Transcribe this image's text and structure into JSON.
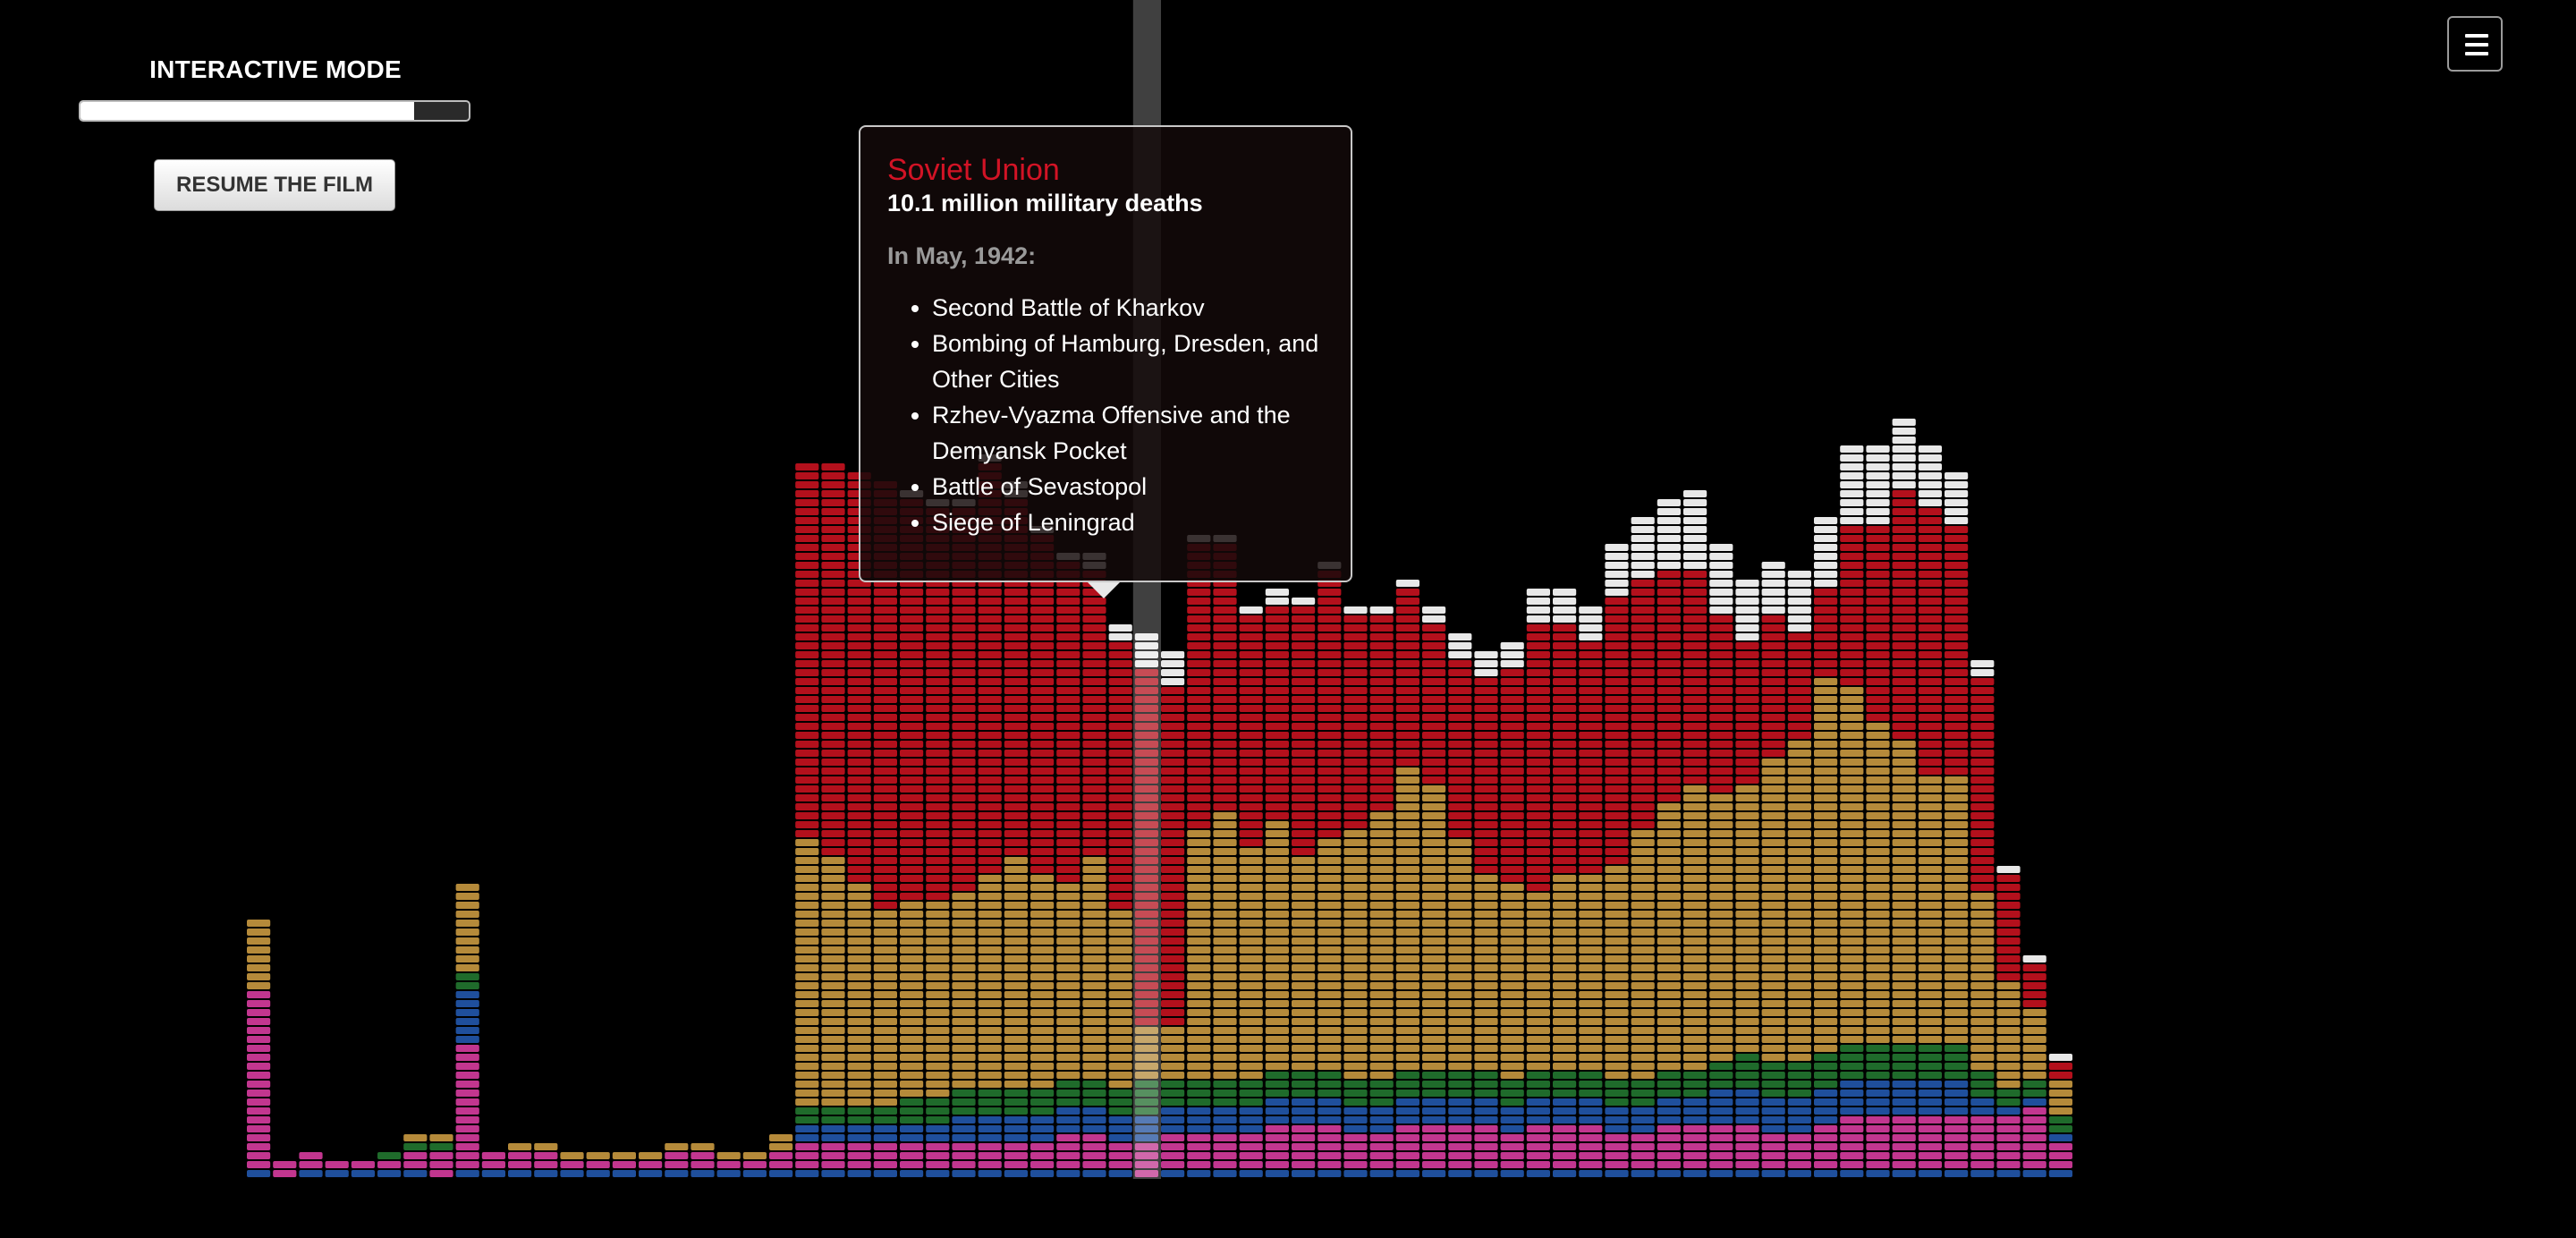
{
  "controls": {
    "mode_title": "INTERACTIVE MODE",
    "progress_fraction": 0.86,
    "resume_label": "RESUME THE FILM",
    "menu_icon": "hamburger-menu-icon"
  },
  "tooltip": {
    "country": "Soviet Union",
    "deaths": "10.1 million millitary deaths",
    "period": "In May, 1942:",
    "events": [
      "Second Battle of Kharkov",
      "Bombing of Hamburg, Dresden, and Other Cities",
      "Rzhev-Vyazma Offensive and the Demyansk Pocket",
      "Battle of Sevastopol",
      "Siege of Leningrad"
    ]
  },
  "colors": {
    "background": "#000000",
    "soviet_union": "#b3101c",
    "germany": "#b58a3a",
    "green": "#1f6b2b",
    "blue": "#1f4f9c",
    "magenta": "#c2368f",
    "white": "#e8e8e8",
    "tooltip_title": "#d21325"
  },
  "chart_data": {
    "type": "area",
    "stacking": "stacked",
    "grid": false,
    "legend": "none",
    "highlighted_month": 34,
    "series": [
      {
        "color": "#1f4f9c",
        "values": [
          1,
          0,
          1,
          1,
          1,
          1,
          1,
          0,
          1,
          1,
          1,
          1,
          1,
          1,
          1,
          1,
          1,
          1,
          1,
          1,
          1,
          1,
          1,
          1,
          1,
          1,
          1,
          1,
          1,
          1,
          1,
          1,
          1,
          1,
          0,
          1,
          1,
          1,
          1,
          1,
          1,
          1,
          1,
          1,
          1,
          1,
          1,
          1,
          1,
          1,
          1,
          1,
          1,
          1,
          1,
          1,
          1,
          1,
          1,
          1,
          1,
          1,
          1,
          1,
          1,
          1,
          1,
          1,
          1,
          1,
          0,
          0,
          0,
          0,
          0,
          0,
          0,
          0,
          0,
          0
        ]
      },
      {
        "color": "#c2368f",
        "values": [
          20,
          2,
          2,
          1,
          1,
          1,
          2,
          3,
          14,
          2,
          2,
          2,
          1,
          1,
          1,
          1,
          2,
          2,
          1,
          1,
          2,
          3,
          3,
          3,
          3,
          3,
          3,
          3,
          3,
          3,
          3,
          4,
          4,
          3,
          4,
          4,
          4,
          4,
          4,
          5,
          5,
          5,
          4,
          4,
          5,
          5,
          5,
          5,
          4,
          5,
          5,
          5,
          4,
          4,
          5,
          5,
          5,
          5,
          4,
          4,
          5,
          6,
          6,
          6,
          6,
          6,
          6,
          6,
          7,
          3,
          0,
          0,
          0,
          0,
          0,
          0,
          0,
          0,
          0,
          0
        ]
      },
      {
        "color": "#1f4f9c",
        "values": [
          0,
          0,
          0,
          0,
          0,
          0,
          0,
          0,
          6,
          0,
          0,
          0,
          0,
          0,
          0,
          0,
          0,
          0,
          0,
          0,
          0,
          2,
          2,
          2,
          2,
          2,
          2,
          3,
          3,
          3,
          3,
          3,
          3,
          3,
          3,
          3,
          3,
          3,
          3,
          3,
          3,
          3,
          3,
          3,
          3,
          3,
          3,
          3,
          3,
          3,
          3,
          3,
          3,
          3,
          3,
          3,
          4,
          4,
          4,
          4,
          4,
          4,
          4,
          4,
          4,
          4,
          2,
          1,
          1,
          1,
          0,
          0,
          0,
          0,
          0,
          0,
          0,
          0,
          0,
          0
        ]
      },
      {
        "color": "#1f6b2b",
        "values": [
          0,
          0,
          0,
          0,
          0,
          1,
          1,
          1,
          2,
          0,
          0,
          0,
          0,
          0,
          0,
          0,
          0,
          0,
          0,
          0,
          0,
          2,
          2,
          2,
          2,
          3,
          3,
          3,
          3,
          3,
          3,
          3,
          3,
          3,
          4,
          3,
          3,
          3,
          3,
          3,
          3,
          3,
          3,
          3,
          3,
          3,
          3,
          3,
          3,
          3,
          3,
          3,
          3,
          3,
          3,
          3,
          3,
          4,
          4,
          4,
          4,
          4,
          4,
          4,
          4,
          4,
          3,
          2,
          2,
          2,
          0,
          0,
          0,
          0,
          0,
          0,
          0,
          0,
          0,
          0
        ]
      },
      {
        "color": "#b58a3a",
        "values": [
          8,
          0,
          0,
          0,
          0,
          0,
          1,
          1,
          10,
          0,
          1,
          1,
          1,
          1,
          1,
          1,
          1,
          1,
          1,
          1,
          2,
          30,
          28,
          25,
          22,
          22,
          22,
          22,
          24,
          26,
          24,
          22,
          25,
          20,
          6,
          6,
          28,
          30,
          26,
          28,
          24,
          26,
          28,
          30,
          34,
          32,
          26,
          22,
          22,
          20,
          22,
          22,
          24,
          28,
          30,
          32,
          30,
          30,
          34,
          36,
          42,
          40,
          36,
          34,
          30,
          30,
          20,
          12,
          8,
          4,
          0,
          0,
          0,
          0,
          0,
          0,
          0,
          0,
          0,
          0
        ]
      },
      {
        "color": "#b3101c",
        "values": [
          0,
          0,
          0,
          0,
          0,
          0,
          0,
          0,
          0,
          0,
          0,
          0,
          0,
          0,
          0,
          0,
          0,
          0,
          0,
          0,
          0,
          42,
          44,
          46,
          48,
          45,
          44,
          43,
          46,
          40,
          38,
          36,
          32,
          30,
          40,
          38,
          32,
          30,
          26,
          24,
          28,
          30,
          24,
          22,
          20,
          18,
          20,
          22,
          24,
          30,
          28,
          26,
          30,
          28,
          26,
          24,
          20,
          16,
          16,
          12,
          10,
          18,
          22,
          28,
          30,
          28,
          24,
          12,
          5,
          2,
          0,
          0,
          0,
          0,
          0,
          0,
          0,
          0,
          0,
          0
        ]
      },
      {
        "color": "#e8e8e8",
        "values": [
          0,
          0,
          0,
          0,
          0,
          0,
          0,
          0,
          0,
          0,
          0,
          0,
          0,
          0,
          0,
          0,
          0,
          0,
          0,
          0,
          0,
          0,
          0,
          0,
          0,
          1,
          1,
          1,
          1,
          2,
          1,
          1,
          2,
          2,
          4,
          4,
          1,
          1,
          1,
          2,
          1,
          1,
          1,
          1,
          1,
          2,
          3,
          3,
          3,
          4,
          4,
          4,
          6,
          7,
          8,
          9,
          8,
          7,
          6,
          7,
          8,
          9,
          9,
          8,
          7,
          6,
          2,
          1,
          1,
          1,
          0,
          0,
          0,
          0,
          0,
          0,
          0,
          0,
          0,
          0
        ]
      }
    ]
  }
}
